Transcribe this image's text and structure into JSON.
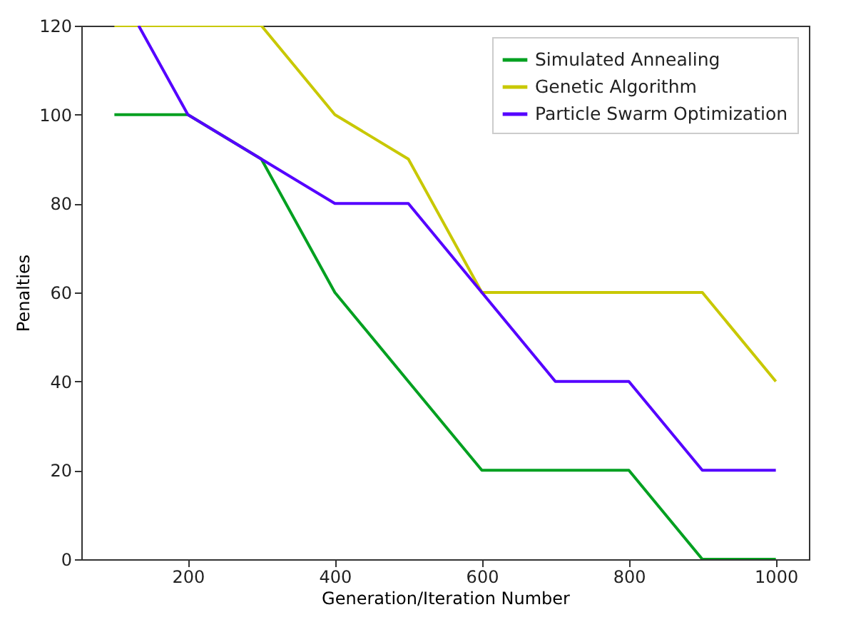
{
  "chart_data": {
    "type": "line",
    "xlabel": "Generation/Iteration Number",
    "ylabel": "Penalties",
    "x": [
      100,
      200,
      300,
      400,
      500,
      600,
      700,
      800,
      900,
      1000
    ],
    "series": [
      {
        "name": "Simulated Annealing",
        "color": "#00a020",
        "values": [
          100,
          100,
          90,
          60,
          40,
          20,
          20,
          20,
          0,
          0
        ]
      },
      {
        "name": "Genetic Algorithm",
        "color": "#c8c800",
        "values": [
          120,
          120,
          120,
          100,
          90,
          60,
          60,
          60,
          60,
          40
        ]
      },
      {
        "name": "Particle Swarm Optimization",
        "color": "#5500ff",
        "x": [
          133,
          200,
          300,
          400,
          500,
          600,
          700,
          800,
          900,
          1000
        ],
        "values": [
          120,
          100,
          90,
          80,
          80,
          60,
          40,
          40,
          20,
          20
        ]
      }
    ],
    "xlim": [
      55,
      1045
    ],
    "xticks": [
      200,
      400,
      600,
      800,
      1000
    ],
    "ylim": [
      0,
      120
    ],
    "yticks": [
      0,
      20,
      40,
      60,
      80,
      100,
      120
    ],
    "grid": false,
    "legend": "top right",
    "marker": "none",
    "line_style": "solid"
  }
}
